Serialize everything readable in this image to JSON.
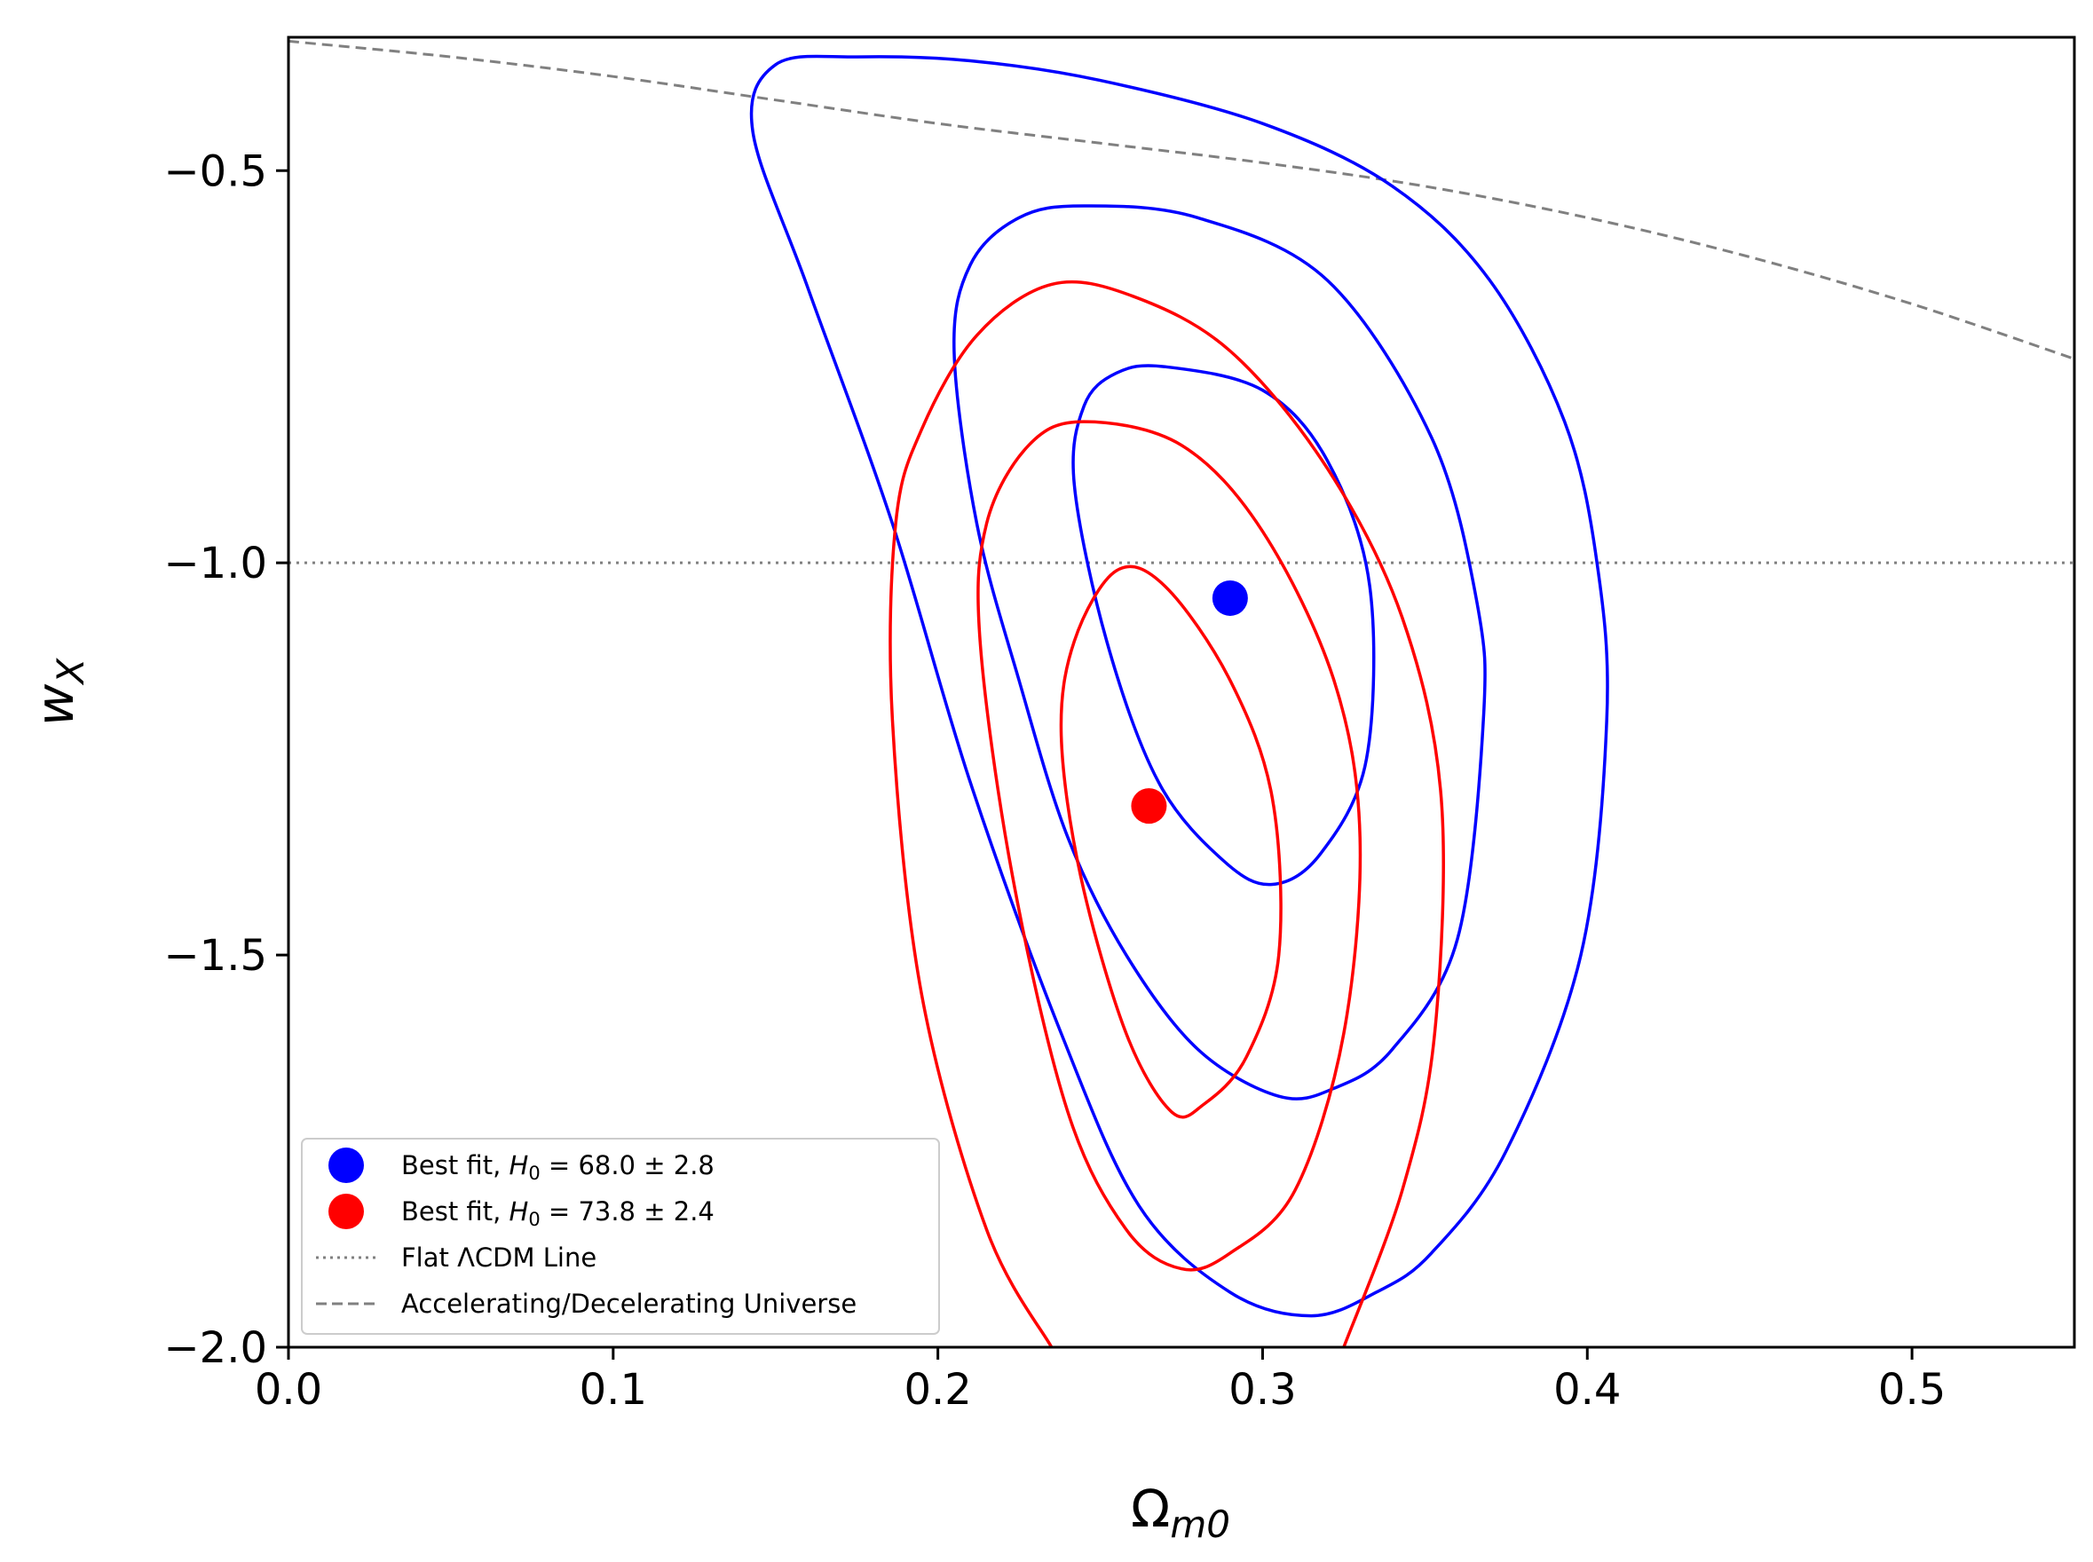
{
  "chart_data": {
    "type": "contour",
    "xlabel": "Ω",
    "xlabel_sub": "m0",
    "ylabel": "w",
    "ylabel_sub": "X",
    "xlim": [
      0.0,
      0.55
    ],
    "ylim": [
      -2.0,
      -0.33
    ],
    "x_ticks": [
      0.0,
      0.1,
      0.2,
      0.3,
      0.4,
      0.5
    ],
    "x_tick_labels": [
      "0.0",
      "0.1",
      "0.2",
      "0.3",
      "0.4",
      "0.5"
    ],
    "y_ticks": [
      -0.5,
      -1.0,
      -1.5,
      -2.0
    ],
    "y_tick_labels": [
      "−0.5",
      "−1.0",
      "−1.5",
      "−2.0"
    ],
    "grid": false,
    "legend_position": "lower-left",
    "colors": {
      "blue": "#0000ff",
      "red": "#ff0000",
      "reference": "#808080"
    },
    "best_fits": [
      {
        "legend": "Best fit, ",
        "h_symbol": "H",
        "h_sub": "0",
        "h_value": " = 68.0 ± 2.8",
        "color": "#0000ff",
        "x": 0.29,
        "y": -1.045
      },
      {
        "legend": "Best fit, ",
        "h_symbol": "H",
        "h_sub": "0",
        "h_value": " = 73.8 ± 2.4",
        "color": "#ff0000",
        "x": 0.265,
        "y": -1.31
      }
    ],
    "reference_lines": [
      {
        "legend": "Flat ΛCDM Line",
        "style": "dotted",
        "y": -1.0
      },
      {
        "legend": "Accelerating/Decelerating Universe",
        "style": "dashed",
        "points": [
          [
            0.0,
            -0.335
          ],
          [
            0.05,
            -0.355
          ],
          [
            0.1,
            -0.38
          ],
          [
            0.15,
            -0.41
          ],
          [
            0.2,
            -0.44
          ],
          [
            0.25,
            -0.465
          ],
          [
            0.3,
            -0.49
          ],
          [
            0.35,
            -0.52
          ],
          [
            0.4,
            -0.56
          ],
          [
            0.45,
            -0.61
          ],
          [
            0.5,
            -0.67
          ],
          [
            0.55,
            -0.74
          ]
        ]
      }
    ],
    "contours": [
      {
        "color": "#0000ff",
        "level": "1-sigma",
        "closed": true,
        "points": [
          [
            0.27,
            -0.75
          ],
          [
            0.3,
            -0.78
          ],
          [
            0.32,
            -0.87
          ],
          [
            0.333,
            -1.03
          ],
          [
            0.332,
            -1.25
          ],
          [
            0.318,
            -1.37
          ],
          [
            0.303,
            -1.41
          ],
          [
            0.288,
            -1.38
          ],
          [
            0.268,
            -1.28
          ],
          [
            0.252,
            -1.1
          ],
          [
            0.242,
            -0.9
          ],
          [
            0.245,
            -0.8
          ],
          [
            0.255,
            -0.758
          ]
        ]
      },
      {
        "color": "#0000ff",
        "level": "2-sigma",
        "closed": true,
        "points": [
          [
            0.245,
            -0.545
          ],
          [
            0.28,
            -0.56
          ],
          [
            0.32,
            -0.64
          ],
          [
            0.352,
            -0.84
          ],
          [
            0.366,
            -1.05
          ],
          [
            0.368,
            -1.2
          ],
          [
            0.36,
            -1.48
          ],
          [
            0.34,
            -1.62
          ],
          [
            0.322,
            -1.67
          ],
          [
            0.305,
            -1.68
          ],
          [
            0.28,
            -1.62
          ],
          [
            0.258,
            -1.5
          ],
          [
            0.24,
            -1.35
          ],
          [
            0.225,
            -1.15
          ],
          [
            0.212,
            -0.95
          ],
          [
            0.205,
            -0.73
          ],
          [
            0.21,
            -0.62
          ],
          [
            0.225,
            -0.56
          ]
        ]
      },
      {
        "color": "#0000ff",
        "level": "3-sigma",
        "closed": true,
        "points": [
          [
            0.175,
            -0.355
          ],
          [
            0.21,
            -0.36
          ],
          [
            0.25,
            -0.385
          ],
          [
            0.3,
            -0.44
          ],
          [
            0.34,
            -0.52
          ],
          [
            0.37,
            -0.64
          ],
          [
            0.393,
            -0.82
          ],
          [
            0.403,
            -1.0
          ],
          [
            0.406,
            -1.2
          ],
          [
            0.398,
            -1.5
          ],
          [
            0.375,
            -1.75
          ],
          [
            0.352,
            -1.88
          ],
          [
            0.335,
            -1.93
          ],
          [
            0.315,
            -1.96
          ],
          [
            0.29,
            -1.93
          ],
          [
            0.262,
            -1.82
          ],
          [
            0.238,
            -1.6
          ],
          [
            0.21,
            -1.28
          ],
          [
            0.186,
            -0.95
          ],
          [
            0.16,
            -0.65
          ],
          [
            0.143,
            -0.45
          ],
          [
            0.15,
            -0.365
          ]
        ]
      },
      {
        "color": "#ff0000",
        "level": "1-sigma",
        "closed": true,
        "points": [
          [
            0.255,
            -1.01
          ],
          [
            0.27,
            -1.03
          ],
          [
            0.29,
            -1.15
          ],
          [
            0.303,
            -1.3
          ],
          [
            0.305,
            -1.5
          ],
          [
            0.295,
            -1.63
          ],
          [
            0.282,
            -1.69
          ],
          [
            0.272,
            -1.7
          ],
          [
            0.258,
            -1.6
          ],
          [
            0.244,
            -1.4
          ],
          [
            0.238,
            -1.22
          ],
          [
            0.242,
            -1.1
          ]
        ]
      },
      {
        "color": "#ff0000",
        "level": "2-sigma",
        "closed": true,
        "points": [
          [
            0.245,
            -0.82
          ],
          [
            0.275,
            -0.85
          ],
          [
            0.3,
            -0.96
          ],
          [
            0.322,
            -1.15
          ],
          [
            0.33,
            -1.35
          ],
          [
            0.325,
            -1.6
          ],
          [
            0.31,
            -1.8
          ],
          [
            0.29,
            -1.88
          ],
          [
            0.275,
            -1.9
          ],
          [
            0.258,
            -1.85
          ],
          [
            0.24,
            -1.7
          ],
          [
            0.223,
            -1.4
          ],
          [
            0.213,
            -1.1
          ],
          [
            0.215,
            -0.95
          ],
          [
            0.228,
            -0.85
          ]
        ]
      },
      {
        "color": "#ff0000",
        "level": "3-sigma",
        "closed": false,
        "points": [
          [
            0.235,
            -2.0
          ],
          [
            0.215,
            -1.85
          ],
          [
            0.195,
            -1.55
          ],
          [
            0.186,
            -1.2
          ],
          [
            0.187,
            -0.95
          ],
          [
            0.195,
            -0.83
          ],
          [
            0.212,
            -0.71
          ],
          [
            0.235,
            -0.645
          ],
          [
            0.26,
            -0.66
          ],
          [
            0.29,
            -0.73
          ],
          [
            0.32,
            -0.88
          ],
          [
            0.343,
            -1.07
          ],
          [
            0.355,
            -1.3
          ],
          [
            0.353,
            -1.6
          ],
          [
            0.343,
            -1.8
          ],
          [
            0.325,
            -2.0
          ]
        ]
      }
    ]
  }
}
